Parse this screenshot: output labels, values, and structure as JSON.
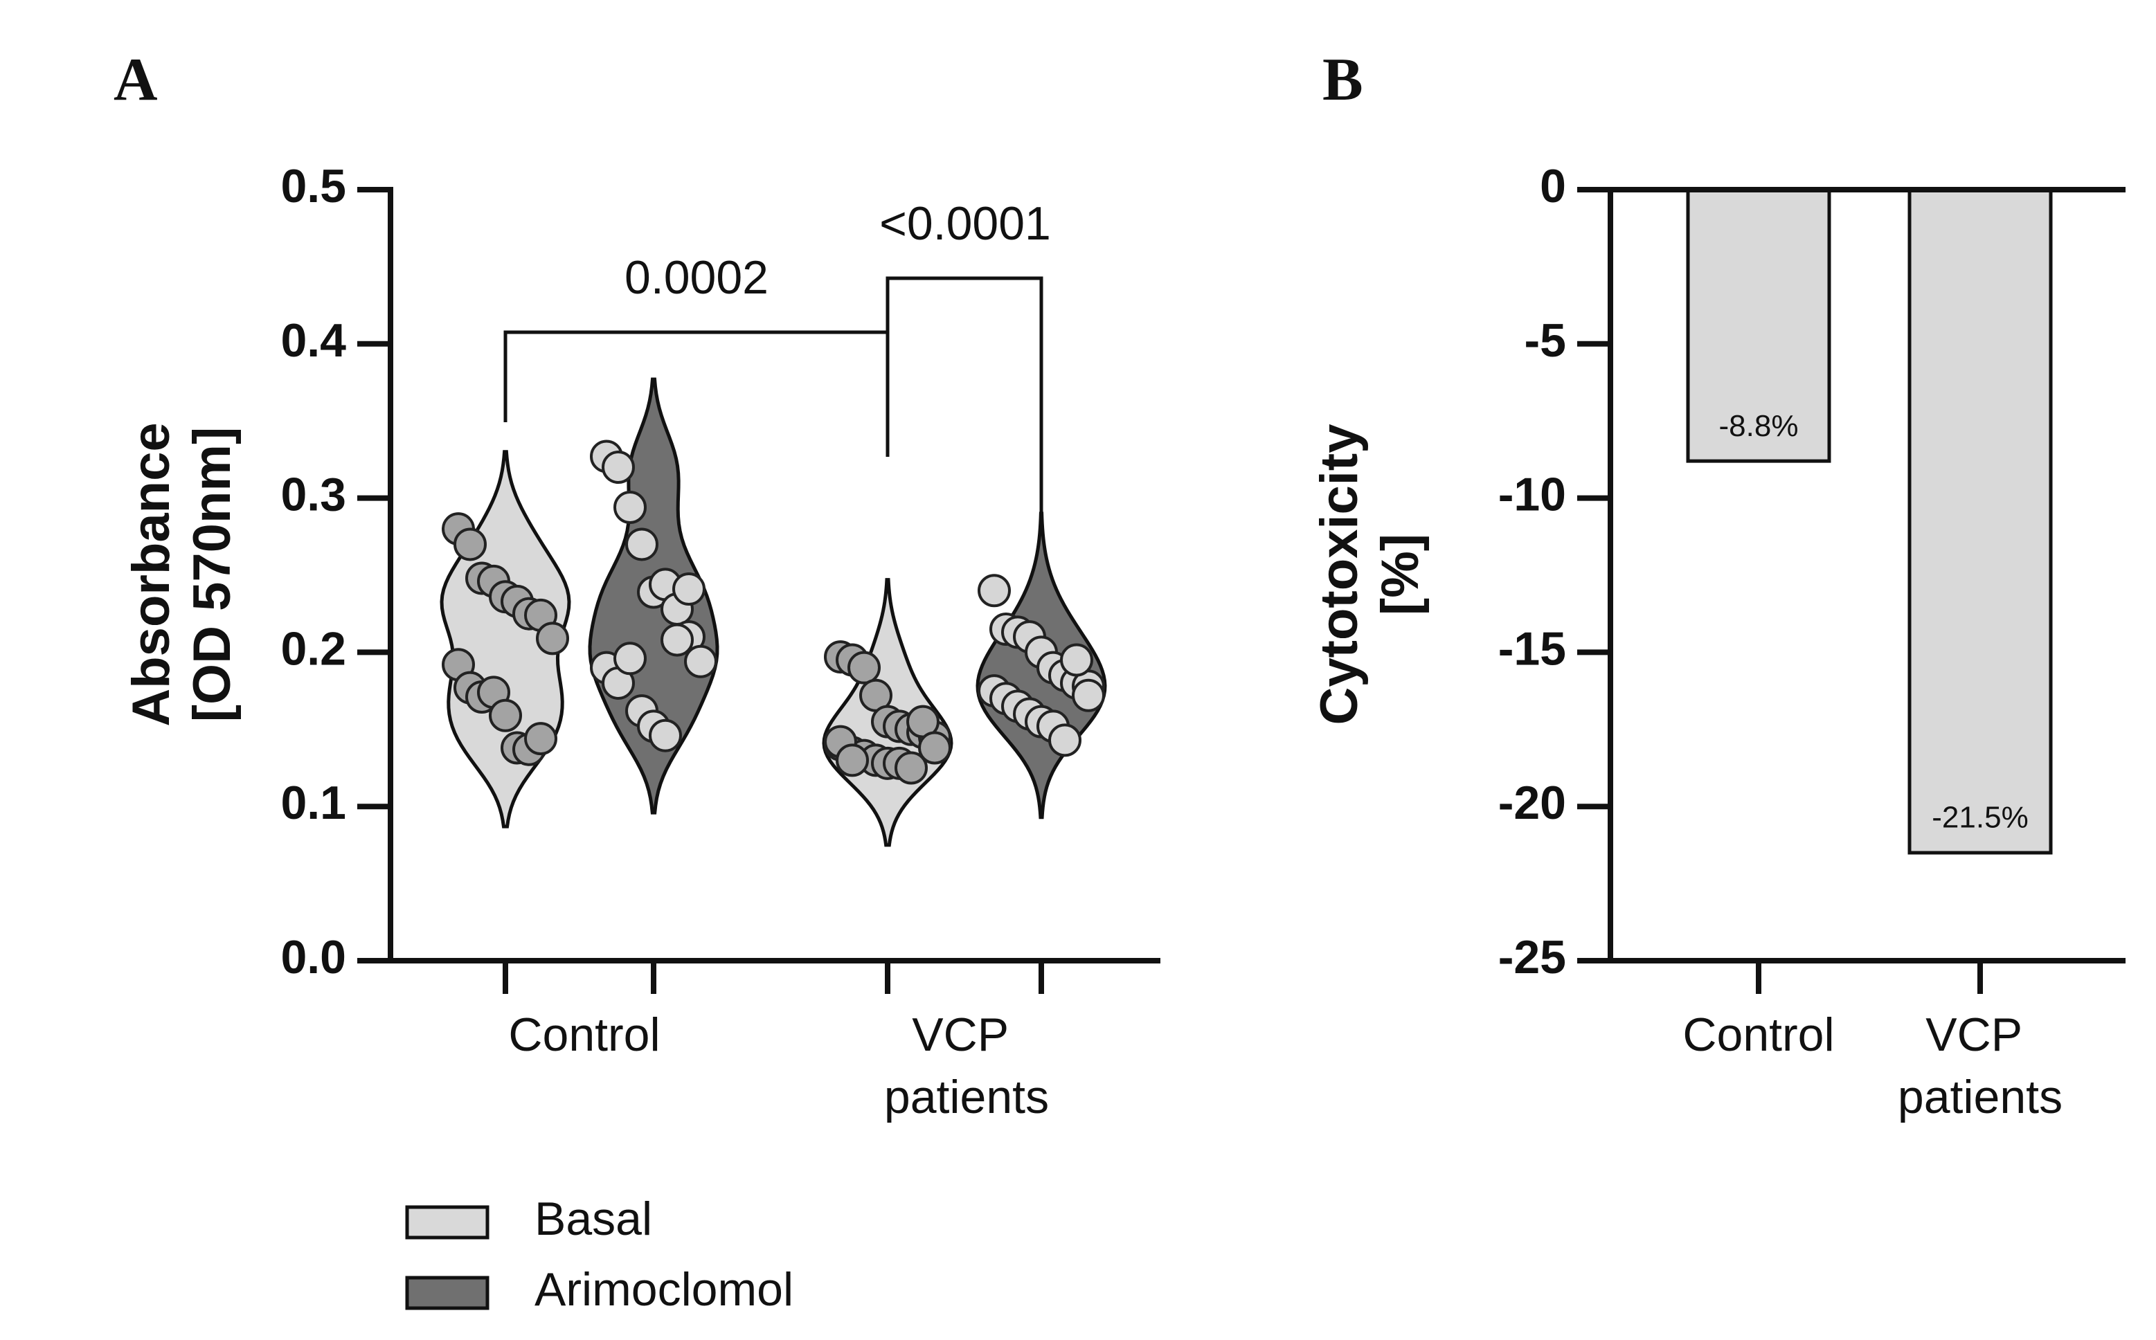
{
  "chart_data": [
    {
      "type": "violin",
      "panel": "A",
      "ylabel": [
        "Absorbance",
        "[OD 570nm]"
      ],
      "categories": [
        "Control",
        "VCP patients"
      ],
      "ylim": [
        0,
        0.5
      ],
      "yticks": [
        {
          "value": 0,
          "label": "0.0"
        },
        0.1,
        0.2,
        0.3,
        0.4,
        0.5
      ],
      "series": [
        {
          "name": "Basal",
          "color": "#d9d9d9",
          "point_color": "#a3a3a3",
          "values": [
            [
              0.28,
              0.27,
              0.248,
              0.246,
              0.236,
              0.233,
              0.225,
              0.224,
              0.209,
              0.192,
              0.177,
              0.171,
              0.174,
              0.159,
              0.138,
              0.137,
              0.144
            ],
            [
              0.197,
              0.195,
              0.19,
              0.172,
              0.155,
              0.152,
              0.15,
              0.148,
              0.145,
              0.14,
              0.135,
              0.133,
              0.13,
              0.128,
              0.128,
              0.125,
              0.155,
              0.138,
              0.142,
              0.13
            ]
          ]
        },
        {
          "name": "Arimoclomol",
          "color": "#707070",
          "point_color": "#d6d6d6",
          "values": [
            [
              0.327,
              0.32,
              0.294,
              0.27,
              0.239,
              0.244,
              0.228,
              0.21,
              0.194,
              0.19,
              0.18,
              0.196,
              0.162,
              0.152,
              0.146,
              0.208,
              0.241
            ],
            [
              0.24,
              0.215,
              0.213,
              0.21,
              0.2,
              0.19,
              0.185,
              0.18,
              0.178,
              0.175,
              0.17,
              0.165,
              0.16,
              0.155,
              0.152,
              0.143,
              0.195,
              0.172
            ]
          ]
        }
      ],
      "annotations": [
        "0.0002",
        "<0.0001"
      ]
    },
    {
      "type": "bar",
      "panel": "B",
      "ylabel": [
        "Cytotoxicity",
        "[%]"
      ],
      "categories": [
        "Control",
        "VCP patients"
      ],
      "values": [
        -8.8,
        -21.5
      ],
      "value_labels": [
        "-8.8%",
        "-21.5%"
      ],
      "color": "#d9d9d9",
      "ylim": [
        -25,
        0
      ],
      "yticks": [
        0,
        -5,
        -10,
        -15,
        -20,
        -25
      ]
    }
  ]
}
